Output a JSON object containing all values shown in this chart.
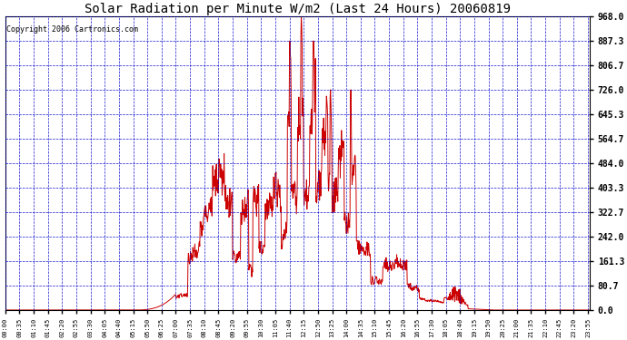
{
  "title": "Solar Radiation per Minute W/m2 (Last 24 Hours) 20060819",
  "copyright": "Copyright 2006 Cartronics.com",
  "y_ticks": [
    0.0,
    80.7,
    161.3,
    242.0,
    322.7,
    403.3,
    484.0,
    564.7,
    645.3,
    726.0,
    806.7,
    887.3,
    968.0
  ],
  "y_max": 968.0,
  "y_min": 0.0,
  "line_color": "#cc0000",
  "bg_color": "#ffffff",
  "grid_color": "#0000cc",
  "title_fontsize": 10,
  "copyright_fontsize": 6,
  "x_tick_step_minutes": 35,
  "n_minutes": 1440,
  "figsize": [
    6.9,
    3.75
  ],
  "dpi": 100
}
